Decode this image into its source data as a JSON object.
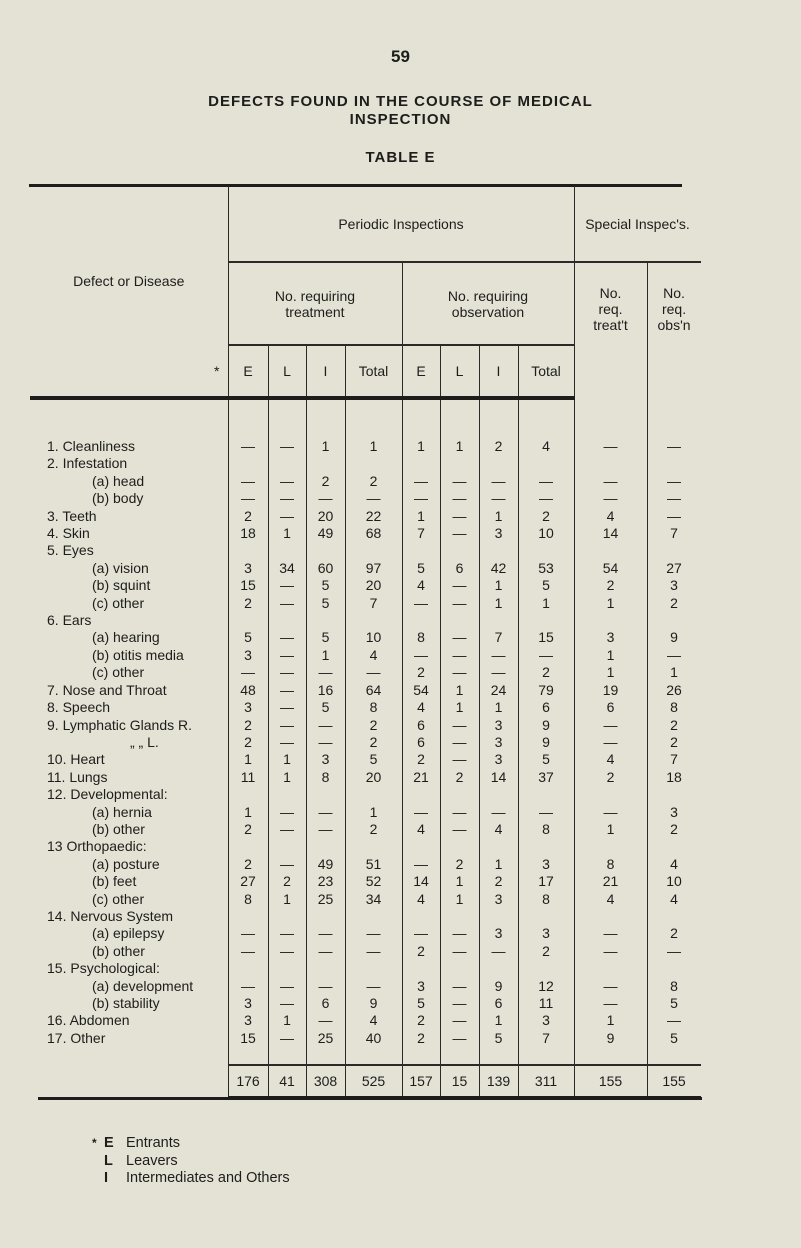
{
  "page_number": "59",
  "title_line1": "DEFECTS FOUND IN THE COURSE OF MEDICAL",
  "title_line2": "INSPECTION",
  "subtitle": "TABLE E",
  "header": {
    "defect": "Defect or Disease",
    "star": "*",
    "periodic": "Periodic Inspections",
    "special": "Special Inspec's.",
    "treatment": "No. requiring treatment",
    "observation": "No. requiring observation",
    "req_treat": "No. req. treat't",
    "req_obs": "No. req. obs'n",
    "cols": [
      "E",
      "L",
      "I",
      "Total",
      "E",
      "L",
      "I",
      "Total"
    ]
  },
  "rows": [
    {
      "label": "1. Cleanliness",
      "indent": 0,
      "values": [
        "—",
        "—",
        "1",
        "1",
        "1",
        "1",
        "2",
        "4",
        "—",
        "—"
      ]
    },
    {
      "label": "2. Infestation",
      "indent": 0,
      "values": null
    },
    {
      "label": "(a)  head",
      "indent": 1,
      "values": [
        "—",
        "—",
        "2",
        "2",
        "—",
        "—",
        "—",
        "—",
        "—",
        "—"
      ]
    },
    {
      "label": "(b)  body",
      "indent": 1,
      "values": [
        "—",
        "—",
        "—",
        "—",
        "—",
        "—",
        "—",
        "—",
        "—",
        "—"
      ]
    },
    {
      "label": "3. Teeth",
      "indent": 0,
      "values": [
        "2",
        "—",
        "20",
        "22",
        "1",
        "—",
        "1",
        "2",
        "4",
        "—"
      ]
    },
    {
      "label": "4. Skin",
      "indent": 0,
      "values": [
        "18",
        "1",
        "49",
        "68",
        "7",
        "—",
        "3",
        "10",
        "14",
        "7"
      ]
    },
    {
      "label": "5. Eyes",
      "indent": 0,
      "values": null
    },
    {
      "label": "(a)  vision",
      "indent": 1,
      "values": [
        "3",
        "34",
        "60",
        "97",
        "5",
        "6",
        "42",
        "53",
        "54",
        "27"
      ]
    },
    {
      "label": "(b)  squint",
      "indent": 1,
      "values": [
        "15",
        "—",
        "5",
        "20",
        "4",
        "—",
        "1",
        "5",
        "2",
        "3"
      ]
    },
    {
      "label": "(c)  other",
      "indent": 1,
      "values": [
        "2",
        "—",
        "5",
        "7",
        "—",
        "—",
        "1",
        "1",
        "1",
        "2"
      ]
    },
    {
      "label": "6. Ears",
      "indent": 0,
      "values": null
    },
    {
      "label": "(a)  hearing",
      "indent": 1,
      "values": [
        "5",
        "—",
        "5",
        "10",
        "8",
        "—",
        "7",
        "15",
        "3",
        "9"
      ]
    },
    {
      "label": "(b)  otitis media",
      "indent": 1,
      "values": [
        "3",
        "—",
        "1",
        "4",
        "—",
        "—",
        "—",
        "—",
        "1",
        "—"
      ]
    },
    {
      "label": "(c)  other",
      "indent": 1,
      "values": [
        "—",
        "—",
        "—",
        "—",
        "2",
        "—",
        "—",
        "2",
        "1",
        "1"
      ]
    },
    {
      "label": "7. Nose and Throat",
      "indent": 0,
      "values": [
        "48",
        "—",
        "16",
        "64",
        "54",
        "1",
        "24",
        "79",
        "19",
        "26"
      ]
    },
    {
      "label": "8. Speech",
      "indent": 0,
      "values": [
        "3",
        "—",
        "5",
        "8",
        "4",
        "1",
        "1",
        "6",
        "6",
        "8"
      ]
    },
    {
      "label": "9. Lymphatic Glands R.",
      "indent": 0,
      "values": [
        "2",
        "—",
        "—",
        "2",
        "6",
        "—",
        "3",
        "9",
        "—",
        "2"
      ]
    },
    {
      "label": "„      „     L.",
      "indent": 2,
      "values": [
        "2",
        "—",
        "—",
        "2",
        "6",
        "—",
        "3",
        "9",
        "—",
        "2"
      ]
    },
    {
      "label": "10. Heart",
      "indent": 0,
      "values": [
        "1",
        "1",
        "3",
        "5",
        "2",
        "—",
        "3",
        "5",
        "4",
        "7"
      ]
    },
    {
      "label": "11. Lungs",
      "indent": 0,
      "values": [
        "11",
        "1",
        "8",
        "20",
        "21",
        "2",
        "14",
        "37",
        "2",
        "18"
      ]
    },
    {
      "label": "12. Developmental:",
      "indent": 0,
      "values": null
    },
    {
      "label": "(a)  hernia",
      "indent": 1,
      "values": [
        "1",
        "—",
        "—",
        "1",
        "—",
        "—",
        "—",
        "—",
        "—",
        "3"
      ]
    },
    {
      "label": "(b)  other",
      "indent": 1,
      "values": [
        "2",
        "—",
        "—",
        "2",
        "4",
        "—",
        "4",
        "8",
        "1",
        "2"
      ]
    },
    {
      "label": "13  Orthopaedic:",
      "indent": 0,
      "values": null
    },
    {
      "label": "(a)  posture",
      "indent": 1,
      "values": [
        "2",
        "—",
        "49",
        "51",
        "—",
        "2",
        "1",
        "3",
        "8",
        "4"
      ]
    },
    {
      "label": "(b)  feet",
      "indent": 1,
      "values": [
        "27",
        "2",
        "23",
        "52",
        "14",
        "1",
        "2",
        "17",
        "21",
        "10"
      ]
    },
    {
      "label": "(c)  other",
      "indent": 1,
      "values": [
        "8",
        "1",
        "25",
        "34",
        "4",
        "1",
        "3",
        "8",
        "4",
        "4"
      ]
    },
    {
      "label": "14. Nervous System",
      "indent": 0,
      "values": null
    },
    {
      "label": "(a)  epilepsy",
      "indent": 1,
      "values": [
        "—",
        "—",
        "—",
        "—",
        "—",
        "—",
        "3",
        "3",
        "—",
        "2"
      ]
    },
    {
      "label": "(b)  other",
      "indent": 1,
      "values": [
        "—",
        "—",
        "—",
        "—",
        "2",
        "—",
        "—",
        "2",
        "—",
        "—"
      ]
    },
    {
      "label": "15. Psychological:",
      "indent": 0,
      "values": null
    },
    {
      "label": "(a)  development",
      "indent": 1,
      "values": [
        "—",
        "—",
        "—",
        "—",
        "3",
        "—",
        "9",
        "12",
        "—",
        "8"
      ]
    },
    {
      "label": "(b)  stability",
      "indent": 1,
      "values": [
        "3",
        "—",
        "6",
        "9",
        "5",
        "—",
        "6",
        "11",
        "—",
        "5"
      ]
    },
    {
      "label": "16. Abdomen",
      "indent": 0,
      "values": [
        "3",
        "1",
        "—",
        "4",
        "2",
        "—",
        "1",
        "3",
        "1",
        "—"
      ]
    },
    {
      "label": "17. Other",
      "indent": 0,
      "values": [
        "15",
        "—",
        "25",
        "40",
        "2",
        "—",
        "5",
        "7",
        "9",
        "5"
      ]
    }
  ],
  "totals": [
    "176",
    "41",
    "308",
    "525",
    "157",
    "15",
    "139",
    "311",
    "155",
    "155"
  ],
  "legend": [
    {
      "key": "E",
      "text": "Entrants"
    },
    {
      "key": "L",
      "text": "Leavers"
    },
    {
      "key": "I",
      "text": "Intermediates and Others"
    }
  ],
  "legend_star": "*"
}
